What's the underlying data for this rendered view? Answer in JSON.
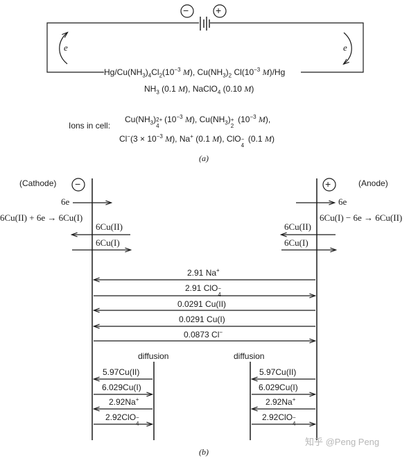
{
  "part_a": {
    "minus_sign": "−",
    "plus_sign": "+",
    "electron_left": "e",
    "electron_right": "e",
    "cell_line1": {
      "pre": "Hg/Cu(NH",
      "s1": "3",
      "m1": ")",
      "s2": "4",
      "m2": "Cl",
      "s3": "2",
      "m3": "(10",
      "p1": "−3",
      "m4": " ",
      "u1": "M",
      "m5": "), Cu(NH",
      "s4": "3",
      "m6": ")",
      "s5": "2",
      "m7": " Cl(10",
      "p2": "−3",
      "m8": " ",
      "u2": "M",
      "post": ")/Hg"
    },
    "cell_line2": {
      "pre": "NH",
      "s1": "3",
      "m1": " (0.1 ",
      "u1": "M",
      "m2": "), NaClO",
      "s2": "4",
      "m3": " (0.10 ",
      "u2": "M",
      "post": ")"
    },
    "ions_label": "Ions in cell:",
    "ions_line1": {
      "pre": "Cu(NH",
      "s1": "3",
      "m1": ")",
      "s2": "4",
      "p1": "2+",
      "m2": "(10",
      "p2": "−3",
      "m3": " ",
      "u1": "M",
      "m4": "), Cu(NH",
      "s3": "3",
      "m5": ")",
      "s4": "2",
      "p3": "+",
      "m6": " (10",
      "p4": "−3",
      "m7": " ",
      "u2": "M",
      "post": "),"
    },
    "ions_line2": {
      "pre": "Cl",
      "p1": "−",
      "m1": "(3 × 10",
      "p2": "−3",
      "m2": " ",
      "u1": "M",
      "m3": "), Na",
      "p3": "+",
      "m4": " (0.1 ",
      "u2": "M",
      "m5": "), ClO",
      "s1": "4",
      "p4": "−",
      "m6": " (0.1 ",
      "u3": "M",
      "post": ")"
    },
    "caption": "(a)"
  },
  "part_b": {
    "cathode_label": "(Cathode)",
    "anode_label": "(Anode)",
    "cathode_sign": "−",
    "anode_sign": "+",
    "left_6e": "6e",
    "right_6e": "6e",
    "cathode_reaction": "6Cu(II) + 6e → 6Cu(I)",
    "anode_reaction": "6Cu(I) − 6e → 6Cu(II)",
    "left_cu2": "6Cu(II)",
    "left_cu1": "6Cu(I)",
    "right_cu2": "6Cu(II)",
    "right_cu1": "6Cu(I)",
    "migration": [
      {
        "num": "2.91 Na",
        "sup": "+",
        "sub": ""
      },
      {
        "num": "2.91 ClO",
        "sup": "−",
        "sub": "4"
      },
      {
        "num": "0.0291 Cu(II)",
        "sup": "",
        "sub": ""
      },
      {
        "num": "0.0291 Cu(I)",
        "sup": "",
        "sub": ""
      },
      {
        "num": "0.0873 Cl",
        "sup": "−",
        "sub": ""
      }
    ],
    "diffusion_left_label": "diffusion",
    "diffusion_right_label": "diffusion",
    "diffusion": [
      {
        "num": "5.97Cu(II)",
        "sup": "",
        "sub": ""
      },
      {
        "num": "6.029Cu(I)",
        "sup": "",
        "sub": ""
      },
      {
        "num": "2.92Na",
        "sup": "+",
        "sub": ""
      },
      {
        "num": "2.92ClO",
        "sup": "−",
        "sub": "4"
      }
    ],
    "caption": "(b)"
  },
  "watermark": "知乎 @Peng Peng"
}
